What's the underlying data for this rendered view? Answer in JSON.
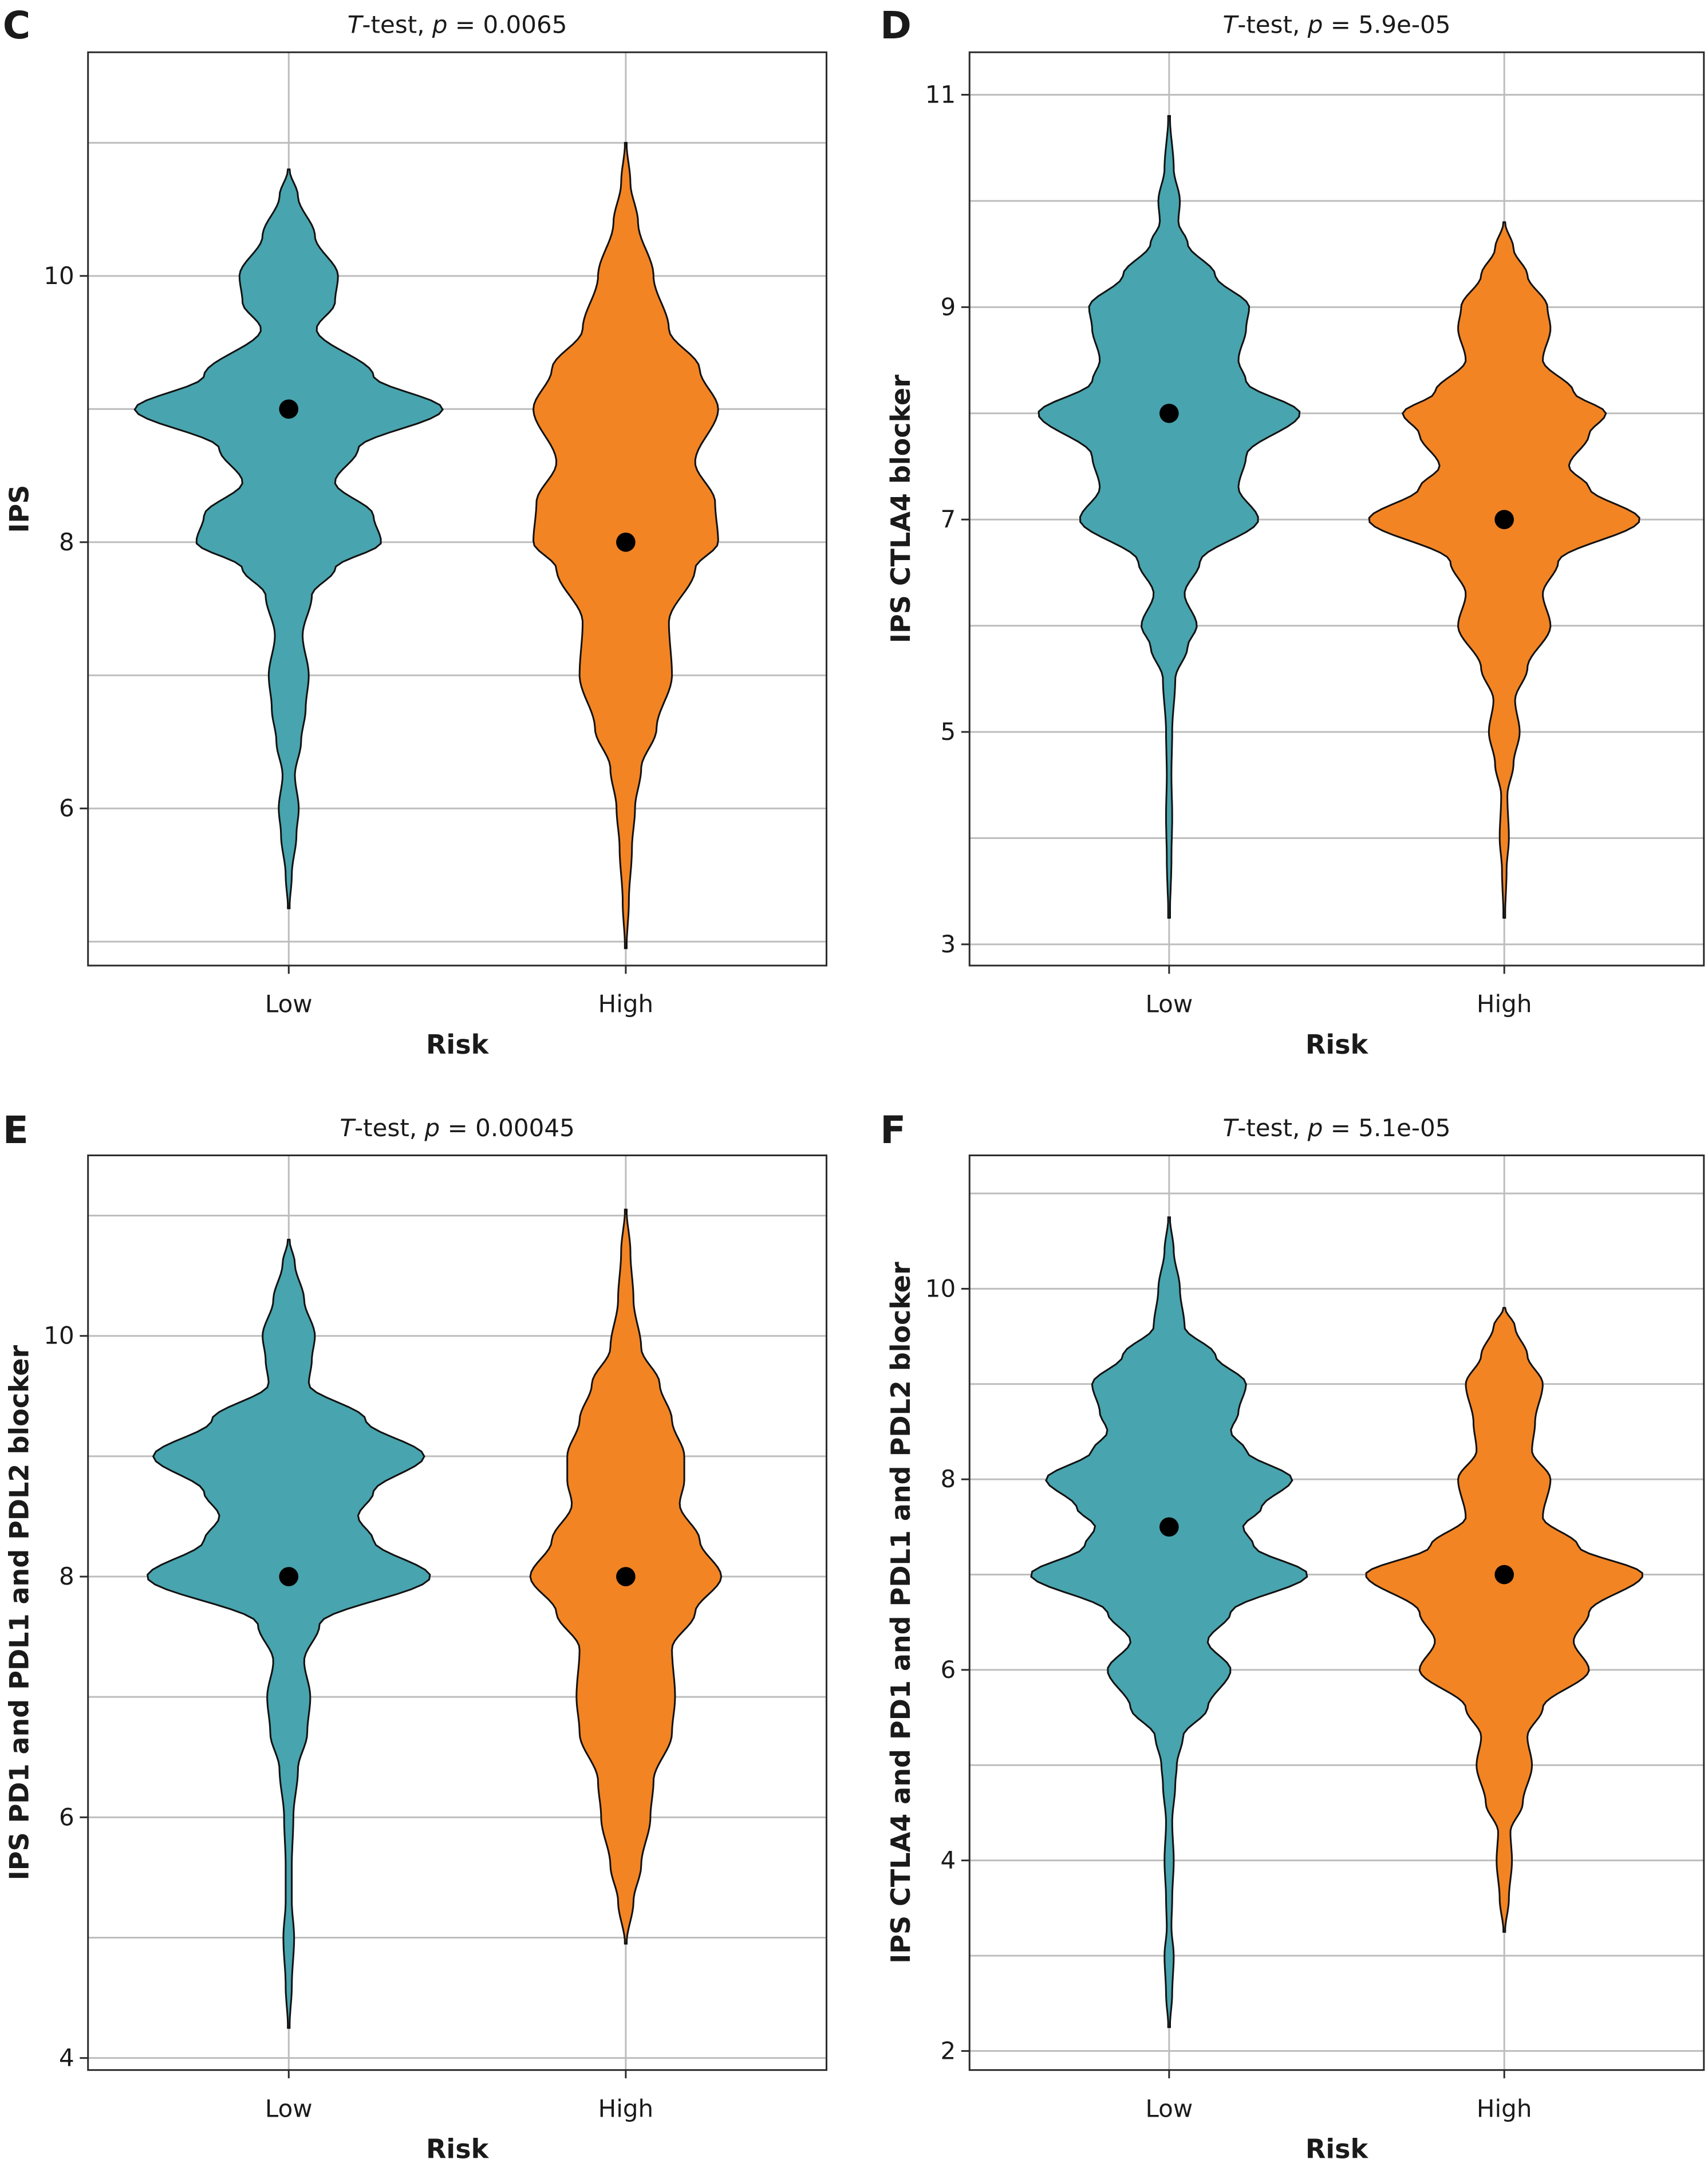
{
  "colors": {
    "low": "#48A4AE",
    "high": "#F28424",
    "median_dot": "#000000"
  },
  "chart_data": [
    {
      "type": "violin",
      "panel": "C",
      "subtitle_test": "T",
      "subtitle_rest": "-test, ",
      "subtitle_p": "p",
      "subtitle_value": " = 0.0065",
      "xlabel": "Risk",
      "ylabel": "IPS",
      "categories": [
        "Low",
        "High"
      ],
      "ylim": [
        4.82,
        11.68
      ],
      "yticks": [
        6,
        8,
        10
      ],
      "yminor": [
        5,
        7,
        9,
        11
      ],
      "series": [
        {
          "name": "Low",
          "median": 9,
          "profile": [
            [
              5.25,
              0.005
            ],
            [
              5.5,
              0.02
            ],
            [
              5.8,
              0.05
            ],
            [
              6.0,
              0.065
            ],
            [
              6.25,
              0.04
            ],
            [
              6.5,
              0.08
            ],
            [
              6.75,
              0.11
            ],
            [
              7.0,
              0.13
            ],
            [
              7.3,
              0.09
            ],
            [
              7.6,
              0.15
            ],
            [
              7.8,
              0.3
            ],
            [
              8.0,
              0.6
            ],
            [
              8.2,
              0.55
            ],
            [
              8.45,
              0.3
            ],
            [
              8.7,
              0.45
            ],
            [
              9.0,
              1.0
            ],
            [
              9.25,
              0.55
            ],
            [
              9.6,
              0.18
            ],
            [
              9.8,
              0.3
            ],
            [
              10.0,
              0.32
            ],
            [
              10.3,
              0.17
            ],
            [
              10.6,
              0.06
            ],
            [
              10.8,
              0.005
            ]
          ]
        },
        {
          "name": "High",
          "median": 8,
          "profile": [
            [
              4.95,
              0.005
            ],
            [
              5.3,
              0.02
            ],
            [
              5.7,
              0.04
            ],
            [
              6.0,
              0.06
            ],
            [
              6.3,
              0.1
            ],
            [
              6.6,
              0.2
            ],
            [
              7.0,
              0.3
            ],
            [
              7.4,
              0.28
            ],
            [
              7.8,
              0.45
            ],
            [
              8.0,
              0.6
            ],
            [
              8.3,
              0.58
            ],
            [
              8.6,
              0.45
            ],
            [
              9.0,
              0.6
            ],
            [
              9.3,
              0.48
            ],
            [
              9.6,
              0.28
            ],
            [
              10.0,
              0.18
            ],
            [
              10.4,
              0.08
            ],
            [
              10.7,
              0.03
            ],
            [
              11.0,
              0.005
            ]
          ]
        }
      ]
    },
    {
      "type": "violin",
      "panel": "D",
      "subtitle_test": "T",
      "subtitle_rest": "-test, ",
      "subtitle_p": "p",
      "subtitle_value": " = 5.9e-05",
      "xlabel": "Risk",
      "ylabel": "IPS CTLA4 blocker",
      "categories": [
        "Low",
        "High"
      ],
      "ylim": [
        2.8,
        11.4
      ],
      "yticks": [
        3,
        5,
        7,
        9,
        11
      ],
      "yminor": [
        4,
        6,
        8,
        10
      ],
      "series": [
        {
          "name": "Low",
          "median": 8,
          "profile": [
            [
              3.25,
              0.005
            ],
            [
              3.8,
              0.015
            ],
            [
              4.2,
              0.02
            ],
            [
              4.6,
              0.015
            ],
            [
              5.0,
              0.02
            ],
            [
              5.5,
              0.04
            ],
            [
              5.8,
              0.12
            ],
            [
              6.0,
              0.18
            ],
            [
              6.3,
              0.1
            ],
            [
              6.6,
              0.2
            ],
            [
              7.0,
              0.58
            ],
            [
              7.3,
              0.45
            ],
            [
              7.6,
              0.5
            ],
            [
              8.0,
              0.85
            ],
            [
              8.3,
              0.5
            ],
            [
              8.5,
              0.45
            ],
            [
              8.8,
              0.5
            ],
            [
              9.0,
              0.52
            ],
            [
              9.3,
              0.3
            ],
            [
              9.6,
              0.12
            ],
            [
              9.8,
              0.06
            ],
            [
              10.0,
              0.07
            ],
            [
              10.3,
              0.03
            ],
            [
              10.8,
              0.005
            ]
          ]
        },
        {
          "name": "High",
          "median": 7,
          "profile": [
            [
              3.25,
              0.005
            ],
            [
              3.7,
              0.015
            ],
            [
              4.0,
              0.03
            ],
            [
              4.4,
              0.02
            ],
            [
              4.7,
              0.06
            ],
            [
              5.0,
              0.1
            ],
            [
              5.3,
              0.07
            ],
            [
              5.6,
              0.15
            ],
            [
              6.0,
              0.3
            ],
            [
              6.3,
              0.25
            ],
            [
              6.6,
              0.35
            ],
            [
              7.0,
              0.88
            ],
            [
              7.3,
              0.55
            ],
            [
              7.5,
              0.42
            ],
            [
              7.8,
              0.55
            ],
            [
              8.0,
              0.66
            ],
            [
              8.2,
              0.45
            ],
            [
              8.5,
              0.25
            ],
            [
              8.8,
              0.3
            ],
            [
              9.0,
              0.28
            ],
            [
              9.3,
              0.15
            ],
            [
              9.55,
              0.06
            ],
            [
              9.8,
              0.005
            ]
          ]
        }
      ]
    },
    {
      "type": "violin",
      "panel": "E",
      "subtitle_test": "T",
      "subtitle_rest": "-test, ",
      "subtitle_p": "p",
      "subtitle_value": " = 0.00045",
      "xlabel": "Risk",
      "ylabel": "IPS PD1 and PDL1 and PDL2 blocker",
      "categories": [
        "Low",
        "High"
      ],
      "ylim": [
        3.9,
        11.5
      ],
      "yticks": [
        4,
        6,
        8,
        10
      ],
      "yminor": [
        5,
        7,
        9,
        11
      ],
      "series": [
        {
          "name": "Low",
          "median": 8,
          "profile": [
            [
              4.25,
              0.005
            ],
            [
              4.6,
              0.02
            ],
            [
              5.0,
              0.035
            ],
            [
              5.3,
              0.02
            ],
            [
              5.6,
              0.02
            ],
            [
              6.0,
              0.03
            ],
            [
              6.4,
              0.06
            ],
            [
              6.7,
              0.12
            ],
            [
              7.0,
              0.14
            ],
            [
              7.3,
              0.1
            ],
            [
              7.6,
              0.2
            ],
            [
              8.0,
              0.92
            ],
            [
              8.3,
              0.55
            ],
            [
              8.5,
              0.45
            ],
            [
              8.7,
              0.55
            ],
            [
              9.0,
              0.88
            ],
            [
              9.3,
              0.5
            ],
            [
              9.6,
              0.13
            ],
            [
              9.8,
              0.15
            ],
            [
              10.0,
              0.17
            ],
            [
              10.3,
              0.1
            ],
            [
              10.6,
              0.04
            ],
            [
              10.8,
              0.005
            ]
          ]
        },
        {
          "name": "High",
          "median": 8,
          "profile": [
            [
              4.95,
              0.005
            ],
            [
              5.3,
              0.05
            ],
            [
              5.6,
              0.1
            ],
            [
              6.0,
              0.16
            ],
            [
              6.3,
              0.18
            ],
            [
              6.7,
              0.3
            ],
            [
              7.0,
              0.32
            ],
            [
              7.4,
              0.3
            ],
            [
              7.7,
              0.45
            ],
            [
              8.0,
              0.62
            ],
            [
              8.3,
              0.48
            ],
            [
              8.6,
              0.35
            ],
            [
              8.8,
              0.38
            ],
            [
              9.0,
              0.38
            ],
            [
              9.3,
              0.3
            ],
            [
              9.6,
              0.22
            ],
            [
              9.9,
              0.1
            ],
            [
              10.3,
              0.05
            ],
            [
              10.7,
              0.03
            ],
            [
              11.05,
              0.005
            ]
          ]
        }
      ]
    },
    {
      "type": "violin",
      "panel": "F",
      "subtitle_test": "T",
      "subtitle_rest": "-test, ",
      "subtitle_p": "p",
      "subtitle_value": " = 5.1e-05",
      "xlabel": "Risk",
      "ylabel": "IPS CTLA4 and PD1 and PDL1 and PDL2 blocker",
      "categories": [
        "Low",
        "High"
      ],
      "ylim": [
        1.8,
        11.4
      ],
      "yticks": [
        2,
        4,
        6,
        8,
        10
      ],
      "yminor": [
        3,
        5,
        7,
        9,
        11
      ],
      "series": [
        {
          "name": "Low",
          "median": 7.5,
          "profile": [
            [
              2.25,
              0.005
            ],
            [
              2.6,
              0.02
            ],
            [
              3.0,
              0.03
            ],
            [
              3.3,
              0.015
            ],
            [
              3.6,
              0.02
            ],
            [
              4.0,
              0.03
            ],
            [
              4.4,
              0.02
            ],
            [
              4.8,
              0.04
            ],
            [
              5.0,
              0.05
            ],
            [
              5.3,
              0.09
            ],
            [
              5.6,
              0.25
            ],
            [
              6.0,
              0.4
            ],
            [
              6.3,
              0.25
            ],
            [
              6.6,
              0.4
            ],
            [
              7.0,
              0.9
            ],
            [
              7.3,
              0.55
            ],
            [
              7.5,
              0.48
            ],
            [
              7.7,
              0.6
            ],
            [
              8.0,
              0.8
            ],
            [
              8.3,
              0.5
            ],
            [
              8.5,
              0.4
            ],
            [
              8.7,
              0.45
            ],
            [
              9.0,
              0.5
            ],
            [
              9.3,
              0.3
            ],
            [
              9.6,
              0.1
            ],
            [
              10.0,
              0.07
            ],
            [
              10.4,
              0.03
            ],
            [
              10.75,
              0.005
            ]
          ]
        },
        {
          "name": "High",
          "median": 7,
          "profile": [
            [
              3.25,
              0.005
            ],
            [
              3.6,
              0.03
            ],
            [
              4.0,
              0.05
            ],
            [
              4.3,
              0.04
            ],
            [
              4.6,
              0.12
            ],
            [
              5.0,
              0.18
            ],
            [
              5.3,
              0.15
            ],
            [
              5.6,
              0.25
            ],
            [
              6.0,
              0.55
            ],
            [
              6.3,
              0.45
            ],
            [
              6.6,
              0.55
            ],
            [
              7.0,
              0.9
            ],
            [
              7.3,
              0.48
            ],
            [
              7.6,
              0.25
            ],
            [
              8.0,
              0.3
            ],
            [
              8.3,
              0.18
            ],
            [
              8.6,
              0.2
            ],
            [
              9.0,
              0.25
            ],
            [
              9.3,
              0.15
            ],
            [
              9.6,
              0.07
            ],
            [
              9.8,
              0.005
            ]
          ]
        }
      ]
    }
  ]
}
